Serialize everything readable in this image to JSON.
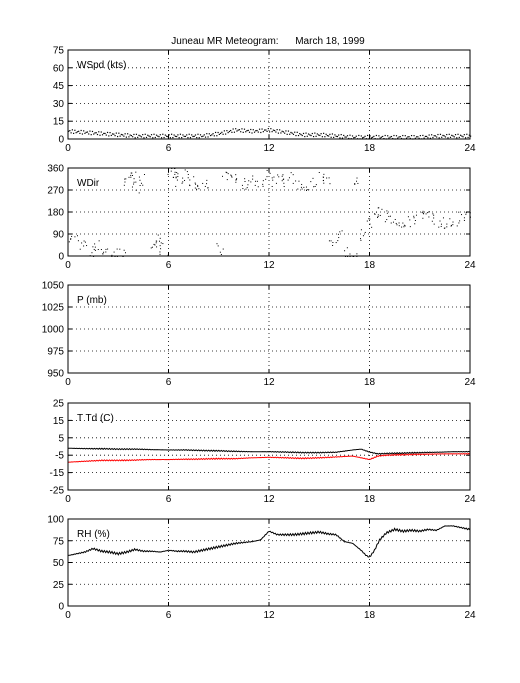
{
  "figure": {
    "title": "Juneau MR Meteogram:      March 18, 1999"
  },
  "chart_data": [
    {
      "id": "wspd",
      "type": "scatter",
      "label": "WSpd (kts)",
      "xlim": [
        0,
        24
      ],
      "ylim": [
        0,
        75
      ],
      "xticks": [
        0,
        6,
        12,
        18,
        24
      ],
      "yticks": [
        0,
        15,
        30,
        45,
        60,
        75
      ],
      "grid": true,
      "series": [
        {
          "color": "#000000",
          "x": [
            0,
            1,
            2,
            3,
            4,
            5,
            6,
            7,
            8,
            9,
            10,
            11,
            12,
            13,
            14,
            15,
            16,
            17,
            18,
            19,
            20,
            21,
            22,
            23,
            24
          ],
          "y": [
            7,
            6,
            5,
            4,
            3,
            3,
            3,
            3,
            3,
            5,
            8,
            7,
            8,
            6,
            4,
            4,
            3,
            2,
            2,
            2,
            2,
            2,
            3,
            3,
            3
          ]
        }
      ]
    },
    {
      "id": "wdir",
      "type": "scatter",
      "label": "WDir",
      "xlim": [
        0,
        24
      ],
      "ylim": [
        0,
        360
      ],
      "xticks": [
        0,
        6,
        12,
        18,
        24
      ],
      "yticks": [
        0,
        90,
        180,
        270,
        360
      ],
      "grid": true,
      "series": [
        {
          "color": "#000000",
          "x": [
            0.3,
            0.8,
            1.3,
            1.8,
            2.3,
            2.8,
            3.2,
            3.5,
            3.8,
            4.0,
            4.3,
            5.1,
            5.4,
            5.7,
            6.1,
            6.3,
            6.6,
            7.0,
            7.4,
            7.8,
            8.2,
            9.1,
            9.4,
            9.8,
            10.2,
            10.6,
            11.0,
            11.4,
            11.8,
            12.2,
            12.6,
            13.0,
            13.4,
            13.8,
            14.2,
            14.6,
            15.0,
            15.4,
            15.8,
            16.2,
            16.6,
            17.0,
            17.3,
            17.6,
            18.0,
            18.3,
            18.6,
            19.0,
            19.4,
            19.8,
            20.2,
            20.6,
            21.0,
            21.4,
            21.8,
            22.2,
            22.6,
            23.0,
            23.4,
            23.8
          ],
          "y": [
            60,
            40,
            20,
            50,
            35,
            15,
            5,
            300,
            320,
            280,
            315,
            60,
            80,
            30,
            340,
            320,
            300,
            330,
            315,
            300,
            305,
            30,
            320,
            310,
            290,
            300,
            330,
            310,
            335,
            300,
            310,
            290,
            320,
            300,
            295,
            310,
            320,
            300,
            40,
            80,
            20,
            15,
            320,
            90,
            130,
            150,
            175,
            165,
            160,
            145,
            150,
            140,
            155,
            160,
            150,
            145,
            140,
            150,
            160,
            155
          ]
        }
      ]
    },
    {
      "id": "pres",
      "type": "line",
      "label": "P (mb)",
      "xlim": [
        0,
        24
      ],
      "ylim": [
        950,
        1050
      ],
      "xticks": [
        0,
        6,
        12,
        18,
        24
      ],
      "yticks": [
        950,
        975,
        1000,
        1025,
        1050
      ],
      "grid": true,
      "series": []
    },
    {
      "id": "temp",
      "type": "line",
      "label": "T Td (C)",
      "xlim": [
        0,
        24
      ],
      "ylim": [
        -25,
        25
      ],
      "xticks": [
        0,
        6,
        12,
        18,
        24
      ],
      "yticks": [
        -25,
        -15,
        -5,
        5,
        15,
        25
      ],
      "grid": true,
      "series": [
        {
          "color": "#000000",
          "x": [
            0,
            1,
            2,
            3,
            4,
            5,
            6,
            7,
            8,
            9,
            10,
            11,
            12,
            13,
            14,
            15,
            16,
            17,
            17.5,
            18,
            18.5,
            19,
            20,
            21,
            22,
            23,
            24
          ],
          "y": [
            -1,
            -1.2,
            -1.3,
            -1.5,
            -1.5,
            -1.8,
            -2,
            -2,
            -2.3,
            -2.5,
            -2.8,
            -3,
            -3,
            -3.2,
            -3.5,
            -3.5,
            -3.3,
            -2,
            -1.5,
            -3.2,
            -4.2,
            -4,
            -3.8,
            -3.5,
            -3.3,
            -3,
            -3
          ]
        },
        {
          "color": "#ff0000",
          "x": [
            0,
            1,
            2,
            3,
            4,
            5,
            6,
            7,
            8,
            9,
            10,
            11,
            12,
            13,
            14,
            15,
            16,
            17,
            17.5,
            18,
            18.5,
            19,
            20,
            21,
            22,
            23,
            24
          ],
          "y": [
            -9,
            -8.5,
            -8,
            -8,
            -7.8,
            -7.5,
            -7.5,
            -7.3,
            -7.2,
            -7,
            -7,
            -6.5,
            -6.2,
            -6.5,
            -6.8,
            -6.5,
            -6,
            -5.5,
            -6.5,
            -7.5,
            -5.5,
            -5,
            -4.7,
            -4.5,
            -4.3,
            -4.2,
            -4.2
          ]
        }
      ]
    },
    {
      "id": "rh",
      "type": "line",
      "label": "RH (%)",
      "xlim": [
        0,
        24
      ],
      "ylim": [
        0,
        100
      ],
      "xticks": [
        0,
        6,
        12,
        18,
        24
      ],
      "yticks": [
        0,
        25,
        50,
        75,
        100
      ],
      "grid": true,
      "series": [
        {
          "color": "#000000",
          "x": [
            0,
            0.5,
            1,
            1.5,
            2,
            2.5,
            3,
            3.5,
            4,
            4.5,
            5,
            5.5,
            6,
            6.5,
            7,
            7.5,
            8,
            8.5,
            9,
            9.5,
            10,
            10.5,
            11,
            11.5,
            12,
            12.5,
            13,
            13.5,
            14,
            14.5,
            15,
            15.5,
            16,
            16.5,
            17,
            17.5,
            17.8,
            18,
            18.3,
            18.6,
            19,
            19.5,
            20,
            20.5,
            21,
            21.5,
            22,
            22.5,
            23,
            23.5,
            24
          ],
          "y": [
            58,
            60,
            62,
            66,
            63,
            62,
            60,
            62,
            65,
            63,
            63,
            62,
            64,
            63,
            63,
            62,
            64,
            66,
            68,
            70,
            72,
            73,
            74,
            76,
            86,
            82,
            82,
            82,
            83,
            84,
            85,
            83,
            82,
            74,
            72,
            64,
            58,
            56,
            64,
            76,
            84,
            88,
            86,
            87,
            86,
            88,
            87,
            92,
            92,
            90,
            88
          ]
        }
      ]
    }
  ]
}
